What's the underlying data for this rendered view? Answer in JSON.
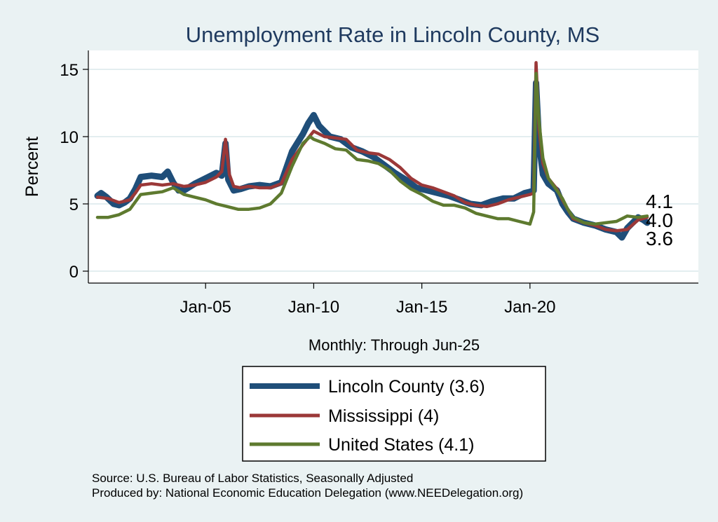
{
  "chart_data": {
    "type": "line",
    "title": "Unemployment Rate in Lincoln  County, MS",
    "ylabel": "Percent",
    "xlabel": "Monthly: Through Jun-25",
    "ylim": [
      0,
      16
    ],
    "yticks": [
      0,
      5,
      10,
      15
    ],
    "xticks": [
      {
        "label": "Jan-05",
        "x": 2005.0
      },
      {
        "label": "Jan-10",
        "x": 2010.0
      },
      {
        "label": "Jan-15",
        "x": 2015.0
      },
      {
        "label": "Jan-20",
        "x": 2020.0
      }
    ],
    "xlim": [
      2000.0,
      2025.42
    ],
    "grid": true,
    "legend_position": "bottom",
    "series": [
      {
        "name": "Lincoln  County (3.6)",
        "legend_label": "Lincoln  County (3.6)",
        "end_label": "3.6",
        "color": "#1f4e79",
        "values": [
          [
            2000.0,
            5.6
          ],
          [
            2000.17,
            5.8
          ],
          [
            2000.42,
            5.5
          ],
          [
            2000.75,
            5.0
          ],
          [
            2001.0,
            4.9
          ],
          [
            2001.25,
            5.1
          ],
          [
            2001.5,
            5.4
          ],
          [
            2001.75,
            6.1
          ],
          [
            2002.0,
            7.0
          ],
          [
            2002.5,
            7.1
          ],
          [
            2003.0,
            7.0
          ],
          [
            2003.25,
            7.4
          ],
          [
            2003.5,
            6.6
          ],
          [
            2003.75,
            6.0
          ],
          [
            2004.0,
            6.0
          ],
          [
            2004.5,
            6.5
          ],
          [
            2005.0,
            6.9
          ],
          [
            2005.5,
            7.3
          ],
          [
            2005.75,
            7.1
          ],
          [
            2005.92,
            9.5
          ],
          [
            2006.05,
            6.8
          ],
          [
            2006.3,
            6.0
          ],
          [
            2006.6,
            6.1
          ],
          [
            2007.0,
            6.3
          ],
          [
            2007.5,
            6.4
          ],
          [
            2008.0,
            6.3
          ],
          [
            2008.5,
            6.6
          ],
          [
            2009.0,
            8.9
          ],
          [
            2009.5,
            10.2
          ],
          [
            2009.75,
            11.0
          ],
          [
            2010.0,
            11.6
          ],
          [
            2010.25,
            10.8
          ],
          [
            2010.75,
            10.0
          ],
          [
            2011.25,
            9.8
          ],
          [
            2011.75,
            9.2
          ],
          [
            2012.25,
            8.9
          ],
          [
            2012.75,
            8.5
          ],
          [
            2013.25,
            7.9
          ],
          [
            2013.75,
            7.3
          ],
          [
            2014.25,
            6.8
          ],
          [
            2014.75,
            6.2
          ],
          [
            2015.25,
            6.0
          ],
          [
            2015.75,
            5.8
          ],
          [
            2016.25,
            5.6
          ],
          [
            2016.75,
            5.3
          ],
          [
            2017.25,
            5.0
          ],
          [
            2017.75,
            4.9
          ],
          [
            2018.25,
            5.2
          ],
          [
            2018.75,
            5.4
          ],
          [
            2019.25,
            5.4
          ],
          [
            2019.75,
            5.8
          ],
          [
            2020.0,
            5.9
          ],
          [
            2020.17,
            6.0
          ],
          [
            2020.28,
            14.0
          ],
          [
            2020.42,
            9.5
          ],
          [
            2020.6,
            7.2
          ],
          [
            2020.85,
            6.5
          ],
          [
            2021.25,
            6.0
          ],
          [
            2021.5,
            5.0
          ],
          [
            2021.75,
            4.4
          ],
          [
            2022.0,
            3.9
          ],
          [
            2022.5,
            3.6
          ],
          [
            2023.0,
            3.4
          ],
          [
            2023.5,
            3.1
          ],
          [
            2024.0,
            2.9
          ],
          [
            2024.25,
            2.5
          ],
          [
            2024.5,
            3.2
          ],
          [
            2024.75,
            3.6
          ],
          [
            2025.0,
            4.0
          ],
          [
            2025.25,
            3.8
          ],
          [
            2025.42,
            3.6
          ]
        ]
      },
      {
        "name": "Mississippi (4)",
        "legend_label": "Mississippi (4)",
        "end_label": "4.0",
        "color": "#9b3838",
        "values": [
          [
            2000.0,
            5.5
          ],
          [
            2000.5,
            5.4
          ],
          [
            2001.0,
            5.1
          ],
          [
            2001.5,
            5.3
          ],
          [
            2001.75,
            5.8
          ],
          [
            2002.0,
            6.4
          ],
          [
            2002.5,
            6.5
          ],
          [
            2003.0,
            6.4
          ],
          [
            2003.5,
            6.5
          ],
          [
            2004.0,
            6.3
          ],
          [
            2004.5,
            6.4
          ],
          [
            2005.0,
            6.6
          ],
          [
            2005.5,
            7.0
          ],
          [
            2005.75,
            7.4
          ],
          [
            2005.92,
            9.8
          ],
          [
            2006.1,
            7.2
          ],
          [
            2006.3,
            6.3
          ],
          [
            2006.6,
            6.2
          ],
          [
            2007.0,
            6.3
          ],
          [
            2007.5,
            6.2
          ],
          [
            2008.0,
            6.2
          ],
          [
            2008.5,
            6.5
          ],
          [
            2009.0,
            8.3
          ],
          [
            2009.5,
            9.4
          ],
          [
            2010.0,
            10.4
          ],
          [
            2010.5,
            10.0
          ],
          [
            2011.0,
            9.9
          ],
          [
            2011.5,
            9.8
          ],
          [
            2012.0,
            9.0
          ],
          [
            2012.5,
            8.8
          ],
          [
            2013.0,
            8.7
          ],
          [
            2013.5,
            8.3
          ],
          [
            2014.0,
            7.7
          ],
          [
            2014.5,
            6.9
          ],
          [
            2015.0,
            6.4
          ],
          [
            2015.5,
            6.2
          ],
          [
            2016.0,
            5.9
          ],
          [
            2016.5,
            5.6
          ],
          [
            2017.0,
            5.1
          ],
          [
            2017.5,
            4.9
          ],
          [
            2018.0,
            4.8
          ],
          [
            2018.5,
            5.0
          ],
          [
            2019.0,
            5.3
          ],
          [
            2019.5,
            5.5
          ],
          [
            2020.0,
            5.7
          ],
          [
            2020.17,
            5.8
          ],
          [
            2020.28,
            15.5
          ],
          [
            2020.42,
            10.5
          ],
          [
            2020.6,
            8.0
          ],
          [
            2020.85,
            6.9
          ],
          [
            2021.25,
            6.1
          ],
          [
            2021.5,
            5.3
          ],
          [
            2021.75,
            4.6
          ],
          [
            2022.0,
            3.9
          ],
          [
            2022.5,
            3.6
          ],
          [
            2023.0,
            3.4
          ],
          [
            2023.5,
            3.1
          ],
          [
            2024.0,
            3.0
          ],
          [
            2024.5,
            3.1
          ],
          [
            2025.0,
            3.8
          ],
          [
            2025.42,
            4.0
          ]
        ]
      },
      {
        "name": "United States (4.1)",
        "legend_label": "United States (4.1)",
        "end_label": "4.1",
        "color": "#5e7a2f",
        "values": [
          [
            2000.0,
            4.0
          ],
          [
            2000.5,
            4.0
          ],
          [
            2001.0,
            4.2
          ],
          [
            2001.5,
            4.6
          ],
          [
            2002.0,
            5.7
          ],
          [
            2002.5,
            5.8
          ],
          [
            2003.0,
            5.9
          ],
          [
            2003.5,
            6.2
          ],
          [
            2004.0,
            5.7
          ],
          [
            2004.5,
            5.5
          ],
          [
            2005.0,
            5.3
          ],
          [
            2005.5,
            5.0
          ],
          [
            2006.0,
            4.8
          ],
          [
            2006.5,
            4.6
          ],
          [
            2007.0,
            4.6
          ],
          [
            2007.5,
            4.7
          ],
          [
            2008.0,
            5.0
          ],
          [
            2008.5,
            5.8
          ],
          [
            2009.0,
            7.8
          ],
          [
            2009.5,
            9.5
          ],
          [
            2009.83,
            10.0
          ],
          [
            2010.0,
            9.8
          ],
          [
            2010.5,
            9.5
          ],
          [
            2011.0,
            9.1
          ],
          [
            2011.5,
            9.0
          ],
          [
            2012.0,
            8.3
          ],
          [
            2012.5,
            8.2
          ],
          [
            2013.0,
            8.0
          ],
          [
            2013.5,
            7.5
          ],
          [
            2014.0,
            6.7
          ],
          [
            2014.5,
            6.1
          ],
          [
            2015.0,
            5.7
          ],
          [
            2015.5,
            5.2
          ],
          [
            2016.0,
            4.9
          ],
          [
            2016.5,
            4.9
          ],
          [
            2017.0,
            4.7
          ],
          [
            2017.5,
            4.3
          ],
          [
            2018.0,
            4.1
          ],
          [
            2018.5,
            3.9
          ],
          [
            2019.0,
            3.9
          ],
          [
            2019.5,
            3.7
          ],
          [
            2020.0,
            3.5
          ],
          [
            2020.17,
            4.4
          ],
          [
            2020.28,
            14.7
          ],
          [
            2020.42,
            11.1
          ],
          [
            2020.6,
            8.4
          ],
          [
            2020.85,
            6.9
          ],
          [
            2021.25,
            6.0
          ],
          [
            2021.5,
            5.4
          ],
          [
            2021.75,
            4.6
          ],
          [
            2022.0,
            4.0
          ],
          [
            2022.5,
            3.6
          ],
          [
            2023.0,
            3.5
          ],
          [
            2023.5,
            3.6
          ],
          [
            2024.0,
            3.7
          ],
          [
            2024.5,
            4.1
          ],
          [
            2025.0,
            4.0
          ],
          [
            2025.42,
            4.1
          ]
        ]
      }
    ]
  },
  "source_line1": "Source: U.S. Bureau of Labor Statistics, Seasonally Adjusted",
  "source_line2": "Produced by: National Economic Education Delegation (www.NEEDelegation.org)"
}
